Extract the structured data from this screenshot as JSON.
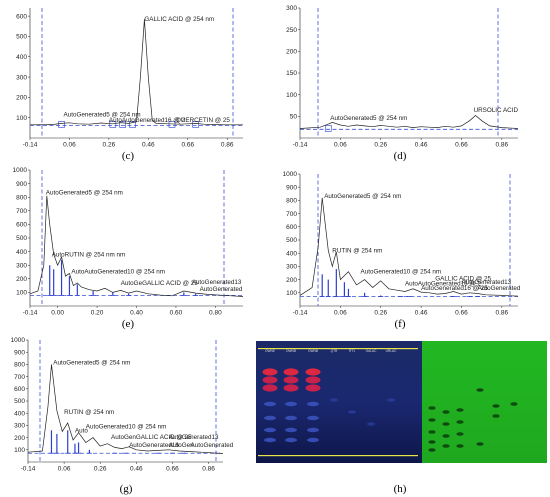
{
  "figure": {
    "panels": [
      {
        "id": "c",
        "label": "(c)"
      },
      {
        "id": "d",
        "label": "(d)"
      },
      {
        "id": "e",
        "label": "(e)"
      },
      {
        "id": "f",
        "label": "(f)"
      },
      {
        "id": "g",
        "label": "(g)"
      },
      {
        "id": "h",
        "label": "(h)"
      }
    ]
  },
  "chart_data": [
    {
      "panel": "c",
      "type": "line",
      "xticks": [
        "-0.14",
        "0.06",
        "0.26",
        "0.46",
        "0.66",
        "0.86"
      ],
      "yticks": [
        "600",
        "500",
        "400",
        "300",
        "200",
        "100"
      ],
      "xlim": [
        -0.14,
        0.94
      ],
      "ylim": [
        0,
        640
      ],
      "series": [
        {
          "x": [
            -0.14,
            -0.05,
            -0.02,
            0.02,
            0.06,
            0.1,
            0.16,
            0.22,
            0.28,
            0.32,
            0.36,
            0.4,
            0.42,
            0.44,
            0.46,
            0.48,
            0.5,
            0.56,
            0.62,
            0.66,
            0.7,
            0.74,
            0.8,
            0.86,
            0.94
          ],
          "y": [
            65,
            66,
            67,
            72,
            75,
            70,
            68,
            74,
            70,
            76,
            72,
            80,
            300,
            585,
            300,
            85,
            72,
            70,
            68,
            70,
            72,
            68,
            66,
            65,
            65
          ]
        }
      ],
      "baseline_y": 62,
      "markers": [
        {
          "x": 0.02
        },
        {
          "x": 0.28
        },
        {
          "x": 0.33
        },
        {
          "x": 0.38
        },
        {
          "x": 0.58
        },
        {
          "x": 0.7
        }
      ],
      "peak_labels": [
        {
          "text": "GALLIC ACID  @ 254 nm",
          "x": 0.44,
          "y": 575
        },
        {
          "text": "AutoGenerated5 @ 254 nm",
          "x": 0.03,
          "y": 105
        },
        {
          "text": "AutoAutoGenerated16 @ 2",
          "x": 0.26,
          "y": 78
        },
        {
          "text": "QUERCETIN @ 25",
          "x": 0.6,
          "y": 78
        }
      ]
    },
    {
      "panel": "d",
      "type": "line",
      "xticks": [
        "-0.14",
        "0.06",
        "0.26",
        "0.46",
        "0.66",
        "0.86"
      ],
      "yticks": [
        "300",
        "250",
        "200",
        "150",
        "100",
        "50"
      ],
      "xlim": [
        -0.14,
        0.94
      ],
      "ylim": [
        0,
        300
      ],
      "series": [
        {
          "x": [
            -0.14,
            -0.04,
            0.0,
            0.02,
            0.06,
            0.1,
            0.14,
            0.18,
            0.22,
            0.26,
            0.3,
            0.34,
            0.38,
            0.42,
            0.46,
            0.5,
            0.54,
            0.58,
            0.62,
            0.66,
            0.7,
            0.73,
            0.76,
            0.8,
            0.86,
            0.94
          ],
          "y": [
            22,
            25,
            32,
            36,
            30,
            27,
            30,
            28,
            26,
            29,
            27,
            25,
            27,
            24,
            26,
            25,
            24,
            27,
            25,
            28,
            40,
            52,
            40,
            28,
            24,
            22
          ]
        }
      ],
      "baseline_y": 20,
      "markers": [
        {
          "x": 0.0
        }
      ],
      "peak_labels": [
        {
          "text": "AutoGenerated5 @ 254 nm",
          "x": 0.01,
          "y": 42
        },
        {
          "text": "URSOLIC ACID",
          "x": 0.72,
          "y": 60
        }
      ]
    },
    {
      "panel": "e",
      "type": "line",
      "xticks": [
        "-0.14",
        "0.00",
        "0.20",
        "0.40",
        "0.60",
        "0.80"
      ],
      "yticks": [
        "1000",
        "900",
        "800",
        "700",
        "600",
        "500",
        "400",
        "300",
        "200",
        "100"
      ],
      "xlim": [
        -0.14,
        0.94
      ],
      "ylim": [
        0,
        1000
      ],
      "series": [
        {
          "x": [
            -0.14,
            -0.1,
            -0.07,
            -0.055,
            -0.04,
            -0.02,
            0.0,
            0.02,
            0.04,
            0.06,
            0.08,
            0.1,
            0.12,
            0.16,
            0.2,
            0.24,
            0.28,
            0.32,
            0.36,
            0.4,
            0.46,
            0.52,
            0.58,
            0.64,
            0.7,
            0.76,
            0.82,
            0.88,
            0.94
          ],
          "y": [
            90,
            110,
            300,
            810,
            600,
            380,
            300,
            360,
            220,
            240,
            150,
            170,
            140,
            120,
            110,
            130,
            100,
            115,
            95,
            110,
            90,
            80,
            75,
            110,
            95,
            85,
            80,
            75,
            70
          ]
        }
      ],
      "baseline_y": 78,
      "markers": [
        {
          "x": -0.04,
          "h": 300
        },
        {
          "x": -0.02,
          "h": 270
        },
        {
          "x": 0.02,
          "h": 340
        },
        {
          "x": 0.06,
          "h": 220
        },
        {
          "x": 0.1,
          "h": 160
        },
        {
          "x": 0.18,
          "h": 110
        },
        {
          "x": 0.28,
          "h": 100
        },
        {
          "x": 0.36,
          "h": 90
        },
        {
          "x": 0.64,
          "h": 100
        },
        {
          "x": 0.7,
          "h": 90
        }
      ],
      "peak_labels": [
        {
          "text": "AutoGenerated5 @ 254 nm",
          "x": -0.06,
          "y": 820
        },
        {
          "text": "AutoRUTIN  @ 254 nm nm",
          "x": -0.03,
          "y": 365
        },
        {
          "text": "AutoAutoGenerated10 @ 254 nm",
          "x": 0.07,
          "y": 240
        },
        {
          "text": "AutoGeGALLIC ACID  @ 25",
          "x": 0.32,
          "y": 155
        },
        {
          "text": "AutoGenerated13",
          "x": 0.68,
          "y": 160
        },
        {
          "text": "AutoGenerated",
          "x": 0.72,
          "y": 110
        }
      ]
    },
    {
      "panel": "f",
      "type": "line",
      "xticks": [
        "-0.14",
        "0.06",
        "0.26",
        "0.46",
        "0.66",
        "0.86"
      ],
      "yticks": [
        "1000",
        "900",
        "800",
        "700",
        "600",
        "500",
        "400",
        "300",
        "200",
        "100"
      ],
      "xlim": [
        -0.14,
        0.94
      ],
      "ylim": [
        0,
        1000
      ],
      "series": [
        {
          "x": [
            -0.14,
            -0.08,
            -0.05,
            -0.03,
            0.0,
            0.02,
            0.04,
            0.06,
            0.08,
            0.1,
            0.14,
            0.18,
            0.22,
            0.26,
            0.3,
            0.34,
            0.38,
            0.42,
            0.46,
            0.5,
            0.54,
            0.58,
            0.62,
            0.66,
            0.7,
            0.74,
            0.78,
            0.86,
            0.94
          ],
          "y": [
            80,
            140,
            450,
            820,
            420,
            300,
            410,
            200,
            230,
            260,
            160,
            200,
            140,
            190,
            130,
            120,
            110,
            130,
            105,
            100,
            90,
            95,
            110,
            90,
            100,
            95,
            85,
            80,
            75
          ]
        }
      ],
      "baseline_y": 72,
      "markers": [
        {
          "x": -0.03,
          "h": 240
        },
        {
          "x": 0.0,
          "h": 200
        },
        {
          "x": 0.04,
          "h": 280
        },
        {
          "x": 0.08,
          "h": 180
        },
        {
          "x": 0.1,
          "h": 130
        },
        {
          "x": 0.18,
          "h": 100
        },
        {
          "x": 0.26,
          "h": 80
        },
        {
          "x": 0.36,
          "h": 70
        },
        {
          "x": 0.4,
          "h": 70
        },
        {
          "x": 0.62,
          "h": 70
        },
        {
          "x": 0.7,
          "h": 70
        },
        {
          "x": 0.74,
          "h": 70
        }
      ],
      "peak_labels": [
        {
          "text": "AutoGenerated5 @ 254 nm",
          "x": -0.02,
          "y": 820
        },
        {
          "text": "RUTIN  @ 254 nm",
          "x": 0.02,
          "y": 405
        },
        {
          "text": "AutoGenerated10 @ 254 nm",
          "x": 0.16,
          "y": 245
        },
        {
          "text": "AutoAutoGenerated16 @ 2",
          "x": 0.38,
          "y": 155
        },
        {
          "text": "GALLIC ACID  @ 25",
          "x": 0.53,
          "y": 195
        },
        {
          "text": "AutoGenerated13",
          "x": 0.66,
          "y": 165
        },
        {
          "text": "AutoGenerated16 @ 25",
          "x": 0.46,
          "y": 120
        },
        {
          "text": "AutoGenerated",
          "x": 0.74,
          "y": 120
        }
      ]
    },
    {
      "panel": "g",
      "type": "line",
      "xticks": [
        "-0.14",
        "0.06",
        "0.26",
        "0.46",
        "0.66",
        "0.86"
      ],
      "yticks": [
        "1000",
        "900",
        "800",
        "700",
        "600",
        "500",
        "400",
        "300",
        "200",
        "100"
      ],
      "xlim": [
        -0.14,
        0.94
      ],
      "ylim": [
        0,
        1000
      ],
      "series": [
        {
          "x": [
            -0.14,
            -0.06,
            -0.03,
            -0.01,
            0.02,
            0.05,
            0.08,
            0.11,
            0.14,
            0.18,
            0.22,
            0.26,
            0.3,
            0.34,
            0.38,
            0.42,
            0.46,
            0.52,
            0.58,
            0.64,
            0.7,
            0.76,
            0.82,
            0.88,
            0.94
          ],
          "y": [
            80,
            90,
            450,
            800,
            420,
            250,
            320,
            180,
            240,
            160,
            200,
            130,
            150,
            120,
            110,
            125,
            100,
            90,
            95,
            100,
            90,
            85,
            80,
            75,
            70
          ]
        }
      ],
      "baseline_y": 72,
      "markers": [
        {
          "x": -0.01,
          "h": 260
        },
        {
          "x": 0.02,
          "h": 230
        },
        {
          "x": 0.08,
          "h": 260
        },
        {
          "x": 0.12,
          "h": 150
        },
        {
          "x": 0.14,
          "h": 160
        },
        {
          "x": 0.2,
          "h": 100
        },
        {
          "x": 0.34,
          "h": 70
        },
        {
          "x": 0.4,
          "h": 70
        },
        {
          "x": 0.58,
          "h": 70
        },
        {
          "x": 0.66,
          "h": 70
        },
        {
          "x": 0.72,
          "h": 70
        }
      ],
      "peak_labels": [
        {
          "text": "AutoGenerated5 @ 254 nm",
          "x": 0.0,
          "y": 800
        },
        {
          "text": "RUTIN  @ 254 nm",
          "x": 0.06,
          "y": 395
        },
        {
          "text": "Auto",
          "x": 0.12,
          "y": 240
        },
        {
          "text": "AutoGenerated10 @ 254 nm",
          "x": 0.18,
          "y": 275
        },
        {
          "text": "AutoGenGALLIC ACID  @ 25",
          "x": 0.32,
          "y": 190
        },
        {
          "text": "AutoGenerated13",
          "x": 0.64,
          "y": 190
        },
        {
          "text": "AutoGenerated16",
          "x": 0.42,
          "y": 125
        },
        {
          "text": "AutoGen",
          "x": 0.64,
          "y": 125
        },
        {
          "text": "AutoGenerated",
          "x": 0.76,
          "y": 125
        }
      ]
    }
  ],
  "plate": {
    "lane_labels": [
      "OWNE",
      "OWNB",
      "OWNB",
      "QTR",
      "RT1",
      "GALAC",
      "URLAC"
    ]
  }
}
